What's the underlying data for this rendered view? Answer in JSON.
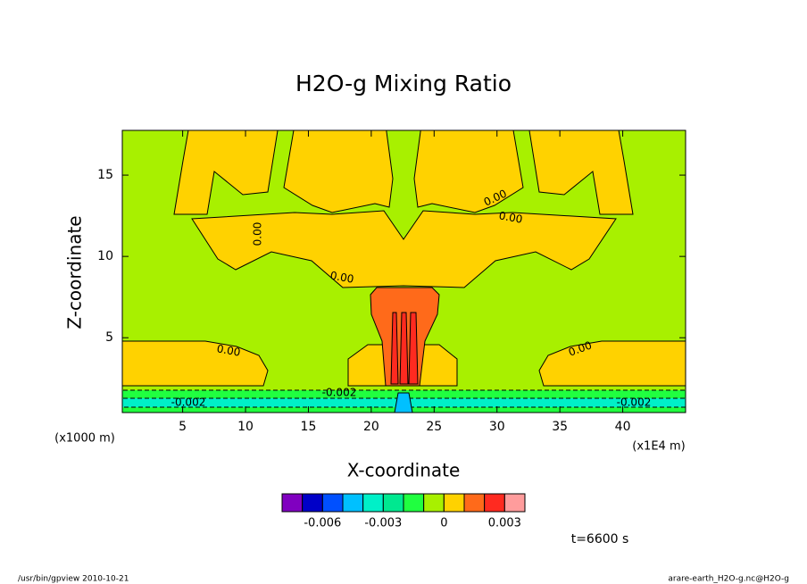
{
  "chart_data": {
    "type": "contour",
    "title": "H2O-g Mixing Ratio",
    "xlabel": "X-coordinate",
    "ylabel": "Z-coordinate",
    "x_unit_label": "(x1000 m)",
    "x_unit_label_right": "(x1E4 m)",
    "xlim": [
      0.2,
      45
    ],
    "xticks": [
      5,
      10,
      15,
      20,
      25,
      30,
      35,
      40
    ],
    "ylim": [
      0.4,
      17.75
    ],
    "yticks": [
      5,
      10,
      15
    ],
    "contour_labels": [
      "0.00",
      "-0.002"
    ],
    "colorbar": {
      "lim": [
        -0.008,
        0.004
      ],
      "ticks": [
        -0.006,
        -0.003,
        0,
        0.003
      ],
      "colors": [
        "#8000c0",
        "#0000c8",
        "#0050ff",
        "#00c0ff",
        "#00f0c8",
        "#00e890",
        "#20ff40",
        "#a8f000",
        "#ffd200",
        "#ff6a1a",
        "#ff2a20",
        "#ff9c9c"
      ]
    },
    "annotation": "t=6600 s",
    "footer_left": "/usr/bin/gpview  2010-10-21",
    "footer_right": "arare-earth_H2O-g.nc@H2O-g"
  }
}
